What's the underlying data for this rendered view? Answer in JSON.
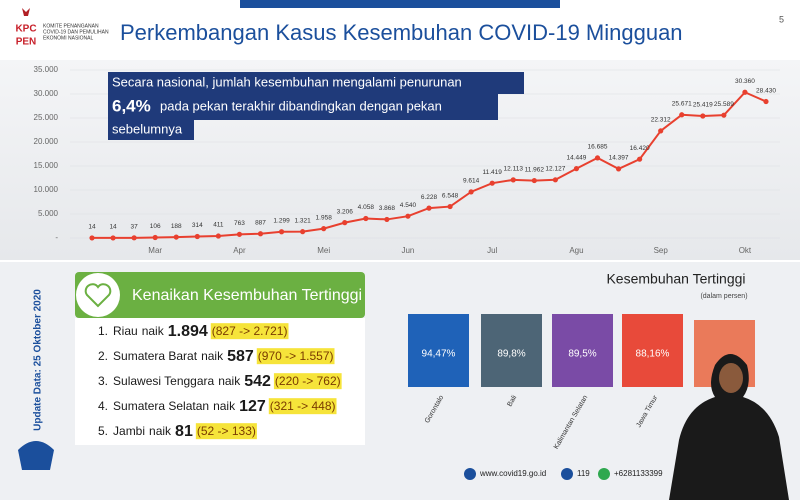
{
  "header": {
    "logo": [
      "KPC",
      "PEN"
    ],
    "org": [
      "KOMITE PENANGANAN",
      "COVID-19 DAN PEMULIHAN",
      "EKONOMI NASIONAL"
    ],
    "title": "Perkembangan Kasus Kesembuhan COVID-19 Mingguan",
    "page": "5"
  },
  "chart_data": {
    "type": "line",
    "annotation": [
      "Secara nasional, jumlah kesembuhan mengalami penurunan",
      "6,4%",
      "pada pekan terakhir dibandingkan dengan pekan",
      "sebelumnya"
    ],
    "categories": [
      null,
      null,
      null,
      "Mar",
      null,
      null,
      null,
      "Apr",
      null,
      null,
      null,
      "Mei",
      null,
      null,
      null,
      "Jun",
      null,
      null,
      null,
      "Jul",
      null,
      null,
      null,
      "Agu",
      null,
      null,
      null,
      "Sep",
      null,
      null,
      null,
      "Okt",
      null
    ],
    "series": [
      {
        "name": "Kesembuhan",
        "color": "#e8402f",
        "values": [
          14,
          14,
          37,
          106,
          188,
          314,
          411,
          763,
          887,
          1299,
          1321,
          1958,
          3206,
          4058,
          3868,
          4540,
          6228,
          6548,
          9614,
          11419,
          12113,
          11962,
          12127,
          14449,
          16685,
          14397,
          16420,
          22312,
          25671,
          25419,
          25589,
          30360,
          28430
        ],
        "value_labels": [
          "14",
          "14",
          "37",
          "106",
          "188",
          "314",
          "411",
          "763",
          "887",
          "1.299",
          "1.321",
          "1.958",
          "3.206",
          "4.058",
          "3.868",
          "4.540",
          "6.228",
          "6.548",
          "9.614",
          "11.419",
          "12.113",
          "11.962",
          "12.127",
          "14.449",
          "16.685",
          "14.397",
          "16.420",
          "22.312",
          "25.671",
          "25.419",
          "25.589",
          "30.360",
          "28.430"
        ]
      }
    ],
    "ylim": [
      0,
      35000
    ],
    "yticks": [
      {
        "value": 0,
        "label": "-"
      },
      {
        "value": 5000,
        "label": "5.000"
      },
      {
        "value": 10000,
        "label": "10.000"
      },
      {
        "value": 15000,
        "label": "15.000"
      },
      {
        "value": 20000,
        "label": "20.000"
      },
      {
        "value": 25000,
        "label": "25.000"
      },
      {
        "value": 30000,
        "label": "30.000"
      },
      {
        "value": 35000,
        "label": "35.000"
      }
    ],
    "grid": true
  },
  "update_note": "Update Data: 25 Oktober 2020",
  "increase_list": {
    "title": "Kenaikan Kesembuhan Tertinggi",
    "rows": [
      {
        "rank": "1.",
        "region": "Riau",
        "verb": "naik",
        "increase": "1.894",
        "range": "(827 -> 2.721)"
      },
      {
        "rank": "2.",
        "region": "Sumatera Barat",
        "verb": "naik",
        "increase": "587",
        "range": "(970 -> 1.557)"
      },
      {
        "rank": "3.",
        "region": "Sulawesi Tenggara",
        "verb": "naik",
        "increase": "542",
        "range": "(220 -> 762)"
      },
      {
        "rank": "4.",
        "region": "Sumatera Selatan",
        "verb": "naik",
        "increase": "127",
        "range": "(321 -> 448)"
      },
      {
        "rank": "5.",
        "region": "Jambi",
        "verb": "naik",
        "increase": "81",
        "range": "(52 -> 133)"
      }
    ]
  },
  "top_recovery": {
    "title": "Kesembuhan Tertinggi",
    "subtitle": "(dalam persen)",
    "tiles": [
      {
        "region": "Gorontalo",
        "percent": "94,47%",
        "color": "#1f62b8"
      },
      {
        "region": "Bali",
        "percent": "89,8%",
        "color": "#4d6576"
      },
      {
        "region": "Kalimantan Selatan",
        "percent": "89,5%",
        "color": "#7a4ba6"
      },
      {
        "region": "Jawa Timur",
        "percent": "88,16%",
        "color": "#e84a3a"
      }
    ]
  },
  "footer": [
    "www.covid19.go.id",
    "119",
    "+6281133399"
  ]
}
